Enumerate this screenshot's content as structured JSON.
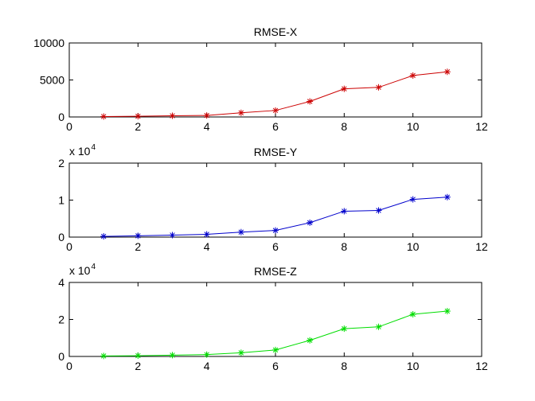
{
  "chart_data": [
    {
      "type": "line",
      "title": "RMSE-X",
      "xlabel": "",
      "ylabel": "",
      "xlim": [
        0,
        12
      ],
      "ylim": [
        0,
        10000
      ],
      "x_ticks": [
        0,
        2,
        4,
        6,
        8,
        10,
        12
      ],
      "y_ticks": [
        0,
        5000,
        10000
      ],
      "y_tick_labels": [
        "0",
        "5000",
        "10000"
      ],
      "y_exponent_label": "",
      "grid": false,
      "color": "#cc0000",
      "marker": "asterisk",
      "x": [
        1,
        2,
        3,
        4,
        5,
        6,
        7,
        8,
        9,
        10,
        11
      ],
      "values": [
        60,
        90,
        160,
        200,
        560,
        880,
        2100,
        3800,
        4000,
        5600,
        6100
      ]
    },
    {
      "type": "line",
      "title": "RMSE-Y",
      "xlabel": "",
      "ylabel": "",
      "xlim": [
        0,
        12
      ],
      "ylim": [
        0,
        20000
      ],
      "x_ticks": [
        0,
        2,
        4,
        6,
        8,
        10,
        12
      ],
      "y_ticks": [
        0,
        10000,
        20000
      ],
      "y_tick_labels": [
        "0",
        "1",
        "2"
      ],
      "y_exponent_label": "x 10",
      "y_exponent_power": "4",
      "grid": false,
      "color": "#0000cc",
      "marker": "asterisk",
      "x": [
        1,
        2,
        3,
        4,
        5,
        6,
        7,
        8,
        9,
        10,
        11
      ],
      "values": [
        200,
        350,
        550,
        750,
        1350,
        1800,
        3900,
        7000,
        7200,
        10200,
        10800
      ]
    },
    {
      "type": "line",
      "title": "RMSE-Z",
      "xlabel": "",
      "ylabel": "",
      "xlim": [
        0,
        12
      ],
      "ylim": [
        0,
        40000
      ],
      "x_ticks": [
        0,
        2,
        4,
        6,
        8,
        10,
        12
      ],
      "y_ticks": [
        0,
        20000,
        40000
      ],
      "y_tick_labels": [
        "0",
        "2",
        "4"
      ],
      "y_exponent_label": "x 10",
      "y_exponent_power": "4",
      "grid": false,
      "color": "#00dd00",
      "marker": "asterisk",
      "x": [
        1,
        2,
        3,
        4,
        5,
        6,
        7,
        8,
        9,
        10,
        11
      ],
      "values": [
        250,
        400,
        700,
        1000,
        2000,
        3500,
        8700,
        15000,
        16000,
        22800,
        24500
      ]
    }
  ]
}
